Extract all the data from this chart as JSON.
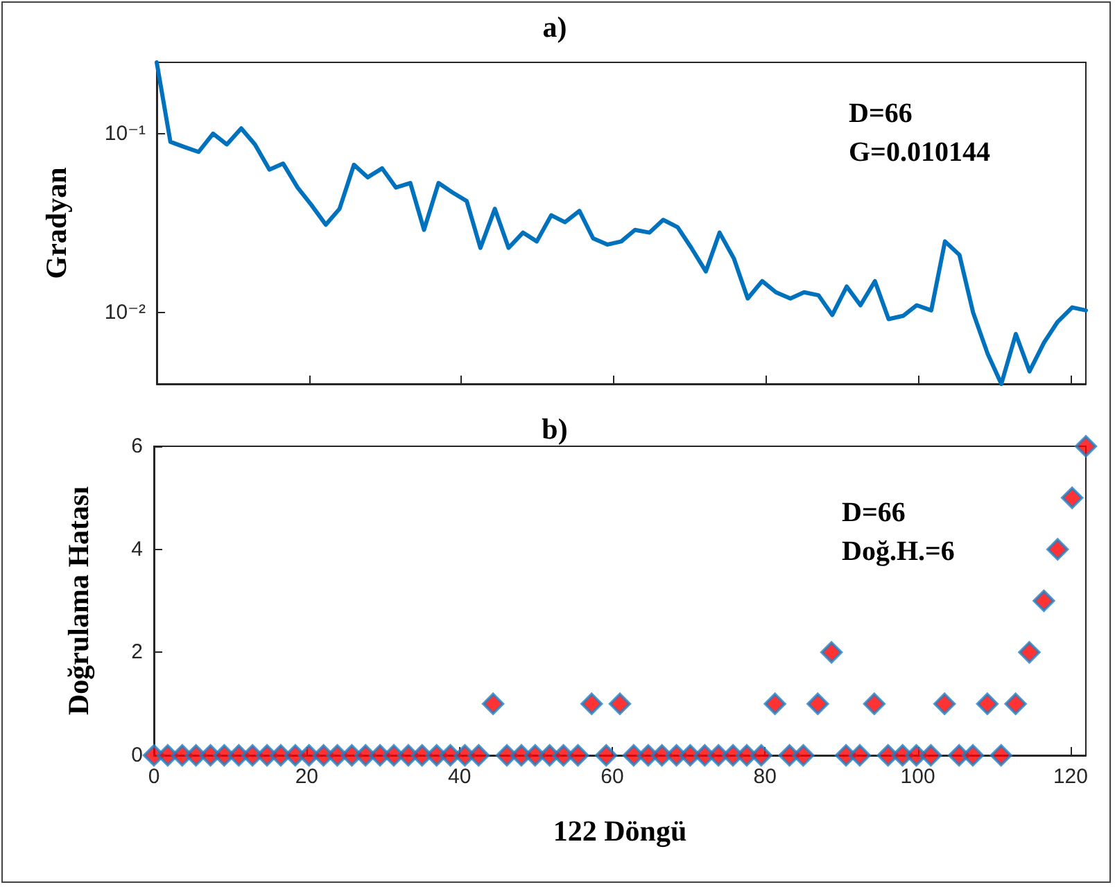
{
  "chart_data": [
    {
      "type": "line",
      "title": "a)",
      "ylabel": "Gradyan",
      "annotations": [
        "D=66",
        "G=0.010144"
      ],
      "x": [
        0,
        1.8,
        3.7,
        5.5,
        7.4,
        9.2,
        11.1,
        12.9,
        14.8,
        16.6,
        18.5,
        20.3,
        22.2,
        24.0,
        25.9,
        27.7,
        29.6,
        31.4,
        33.3,
        35.1,
        37.0,
        38.8,
        40.7,
        42.5,
        44.4,
        46.2,
        48.1,
        49.9,
        51.8,
        53.6,
        55.5,
        57.3,
        59.2,
        61.0,
        62.8,
        64.7,
        66.5,
        68.4,
        70.2,
        72.1,
        73.9,
        75.8,
        77.6,
        79.5,
        81.3,
        83.2,
        85.0,
        86.9,
        88.7,
        90.6,
        92.4,
        94.3,
        96.1,
        98.0,
        99.8,
        101.7,
        103.5,
        105.4,
        107.2,
        109.1,
        110.9,
        112.8,
        114.6,
        116.5,
        118.3,
        120.2,
        122.0
      ],
      "series": [
        {
          "color": "#0072bd",
          "values": [
            0.25,
            0.09,
            0.084,
            0.079,
            0.1,
            0.087,
            0.107,
            0.087,
            0.063,
            0.068,
            0.05,
            0.04,
            0.031,
            0.038,
            0.067,
            0.057,
            0.064,
            0.05,
            0.053,
            0.029,
            0.053,
            0.047,
            0.042,
            0.023,
            0.038,
            0.023,
            0.028,
            0.025,
            0.035,
            0.032,
            0.037,
            0.026,
            0.024,
            0.025,
            0.029,
            0.028,
            0.033,
            0.03,
            0.023,
            0.017,
            0.028,
            0.02,
            0.012,
            0.015,
            0.013,
            0.012,
            0.013,
            0.0125,
            0.0097,
            0.014,
            0.011,
            0.015,
            0.0092,
            0.0096,
            0.011,
            0.0103,
            0.025,
            0.021,
            0.01,
            0.0059,
            0.004,
            0.0076,
            0.0047,
            0.0068,
            0.0089,
            0.0107,
            0.0103
          ]
        }
      ],
      "log": "y",
      "xlim": [
        0,
        122
      ],
      "xticks": [
        0,
        20,
        40,
        60,
        80,
        100,
        120
      ],
      "ylim": [
        0.004,
        0.25
      ],
      "yticks": [
        {
          "value": 0.01,
          "label": "10⁻²"
        },
        {
          "value": 0.1,
          "label": "10⁻¹"
        }
      ],
      "tick_labels": "y",
      "marker": "none",
      "line_style": "solid",
      "grid": false
    },
    {
      "type": "scatter",
      "title": "b)",
      "xlabel": "122 Döngü",
      "ylabel": "Doğrulama Hatası",
      "annotations": [
        "D=66",
        "Doğ.H.=6"
      ],
      "x": [
        0,
        1.8,
        3.7,
        5.5,
        7.4,
        9.2,
        11.1,
        12.9,
        14.8,
        16.6,
        18.5,
        20.3,
        22.2,
        24.0,
        25.9,
        27.7,
        29.6,
        31.4,
        33.3,
        35.1,
        37.0,
        38.8,
        40.7,
        42.5,
        44.4,
        46.2,
        48.1,
        49.9,
        51.8,
        53.6,
        55.5,
        57.3,
        59.2,
        61.0,
        62.8,
        64.7,
        66.5,
        68.4,
        70.2,
        72.1,
        73.9,
        75.8,
        77.6,
        79.5,
        81.3,
        83.2,
        85.0,
        86.9,
        88.7,
        90.6,
        92.4,
        94.3,
        96.1,
        98.0,
        99.8,
        101.7,
        103.5,
        105.4,
        107.2,
        109.1,
        110.9,
        112.8,
        114.6,
        116.5,
        118.3,
        120.2,
        122.0
      ],
      "series": [
        {
          "color": "#ff0000",
          "values": [
            0,
            0,
            0,
            0,
            0,
            0,
            0,
            0,
            0,
            0,
            0,
            0,
            0,
            0,
            0,
            0,
            0,
            0,
            0,
            0,
            0,
            0,
            0,
            0,
            1,
            0,
            0,
            0,
            0,
            0,
            0,
            1,
            0,
            1,
            0,
            0,
            0,
            0,
            0,
            0,
            0,
            0,
            0,
            0,
            1,
            0,
            0,
            1,
            2,
            0,
            0,
            1,
            0,
            0,
            0,
            0,
            1,
            0,
            0,
            1,
            0,
            1,
            2,
            3,
            4,
            5,
            6
          ]
        }
      ],
      "xlim": [
        0,
        122
      ],
      "xticks": [
        0,
        20,
        40,
        60,
        80,
        100,
        120
      ],
      "ylim": [
        0,
        6
      ],
      "yticks": [
        0,
        2,
        4,
        6
      ],
      "marker": "diamond",
      "grid": false
    }
  ]
}
